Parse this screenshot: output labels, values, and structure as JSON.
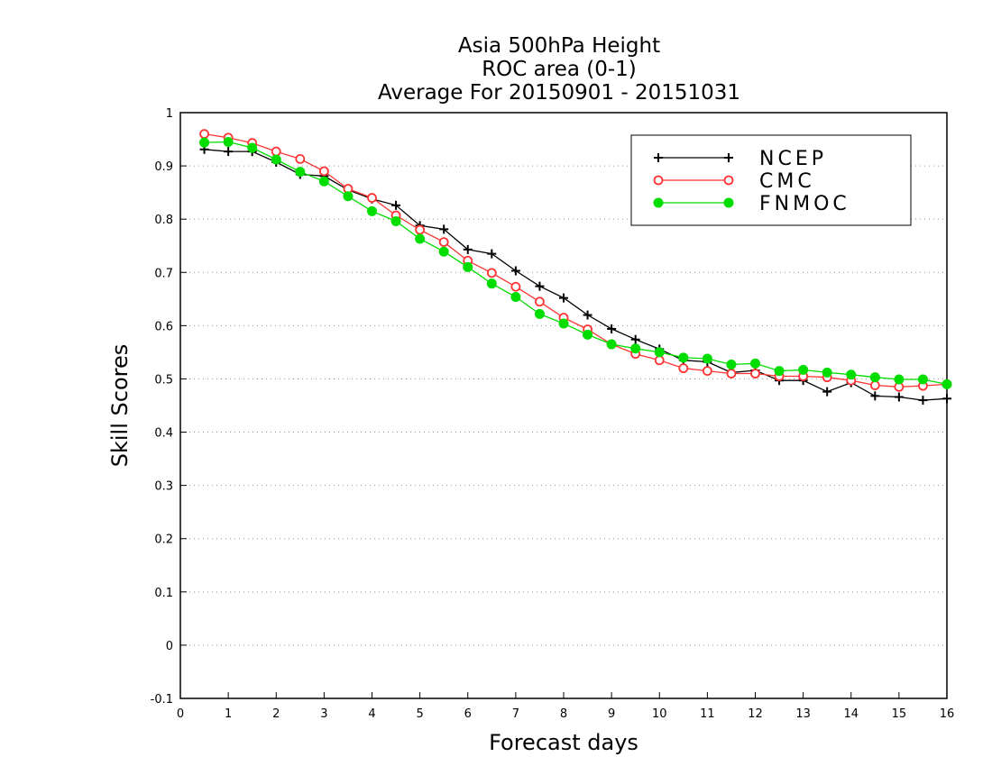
{
  "chart_data": {
    "type": "line",
    "title": [
      "Asia 500hPa Height",
      "ROC area (0-1)",
      "Average For 20150901 - 20151031"
    ],
    "xlabel": "Forecast days",
    "ylabel": "Skill Scores",
    "xlim": [
      0,
      16
    ],
    "ylim": [
      -0.1,
      1
    ],
    "x_ticks": [
      "0",
      "1",
      "2",
      "3",
      "4",
      "5",
      "6",
      "7",
      "8",
      "9",
      "10",
      "11",
      "12",
      "13",
      "14",
      "15",
      "16"
    ],
    "y_ticks": [
      "1",
      "0.9",
      "0.8",
      "0.7",
      "0.6",
      "0.5",
      "0.4",
      "0.3",
      "0.2",
      "0.1",
      "0",
      "-0.1"
    ],
    "grid": "horizontal dotted",
    "legend_position": "top-right",
    "x": [
      0.5,
      1,
      1.5,
      2,
      2.5,
      3,
      3.5,
      4,
      4.5,
      5,
      5.5,
      6,
      6.5,
      7,
      7.5,
      8,
      8.5,
      9,
      9.5,
      10,
      10.5,
      11,
      11.5,
      12,
      12.5,
      13,
      13.5,
      14,
      14.5,
      15,
      15.5,
      16
    ],
    "series": [
      {
        "name": "NCEP",
        "color": "#000000",
        "marker": "plus",
        "values": [
          0.931,
          0.927,
          0.927,
          0.907,
          0.884,
          0.881,
          0.855,
          0.838,
          0.826,
          0.788,
          0.781,
          0.743,
          0.735,
          0.703,
          0.674,
          0.652,
          0.62,
          0.594,
          0.574,
          0.556,
          0.535,
          0.532,
          0.512,
          0.516,
          0.497,
          0.497,
          0.476,
          0.493,
          0.468,
          0.466,
          0.46,
          0.463
        ]
      },
      {
        "name": "CMC",
        "color": "#ff3333",
        "marker": "open-circle",
        "values": [
          0.96,
          0.953,
          0.943,
          0.927,
          0.913,
          0.89,
          0.857,
          0.84,
          0.807,
          0.78,
          0.757,
          0.722,
          0.699,
          0.673,
          0.645,
          0.615,
          0.593,
          0.565,
          0.547,
          0.535,
          0.52,
          0.515,
          0.51,
          0.51,
          0.505,
          0.505,
          0.503,
          0.497,
          0.488,
          0.485,
          0.487,
          0.49
        ]
      },
      {
        "name": "FNMOC",
        "color": "#00dd00",
        "marker": "filled-circle",
        "values": [
          0.944,
          0.945,
          0.934,
          0.912,
          0.889,
          0.871,
          0.843,
          0.815,
          0.796,
          0.763,
          0.739,
          0.71,
          0.679,
          0.654,
          0.622,
          0.604,
          0.583,
          0.565,
          0.557,
          0.55,
          0.54,
          0.538,
          0.527,
          0.529,
          0.515,
          0.517,
          0.512,
          0.508,
          0.503,
          0.499,
          0.499,
          0.49
        ]
      }
    ]
  }
}
